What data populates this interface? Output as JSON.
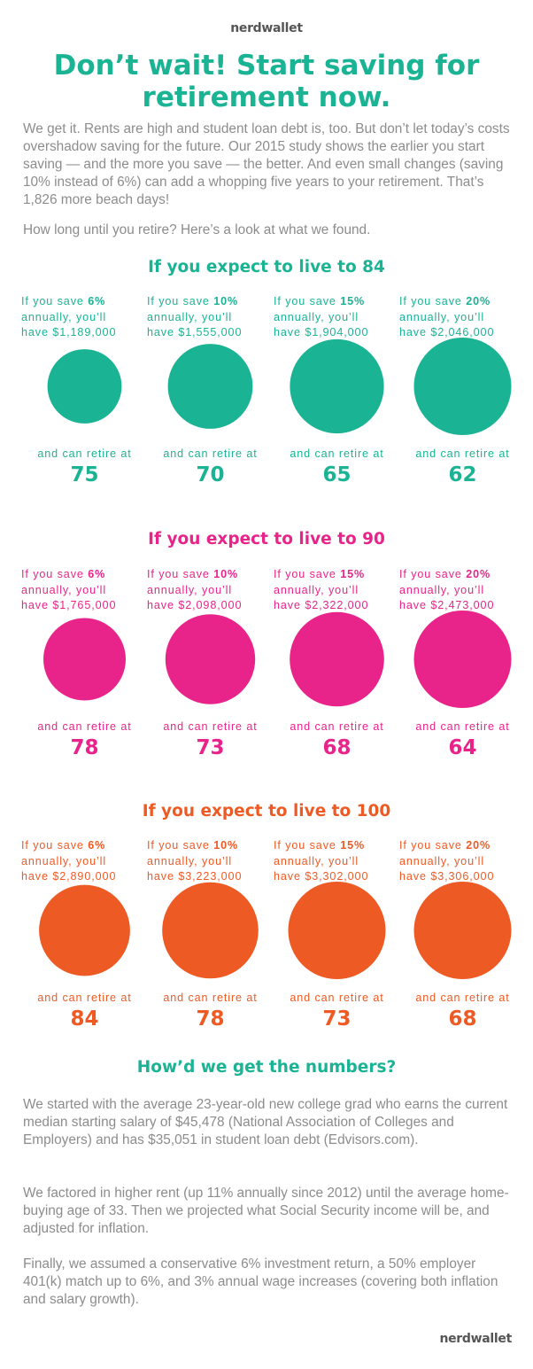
{
  "brand": "nerdwallet",
  "title": "Don’t wait! Start saving for retirement now.",
  "intro": "We get it. Rents are high and student loan debt is, too. But don’t let today’s costs overshadow saving for the future. Our 2015 study shows the earlier you start saving — and the more you save — the better. And even small changes (saving 10% instead of 6%) can add a whopping five years to your retirement. That’s 1,826 more beach days!",
  "question": "How long until you retire? Here’s a look at what we found.",
  "labels": {
    "save_prefix": "If you save ",
    "annually": "annually, you’ll",
    "have_prefix": "have ",
    "retire_label": "and can retire at"
  },
  "colors": {
    "teal": "#1ab394",
    "magenta": "#e8248a",
    "orange": "#ee5a24"
  },
  "chart_data": [
    {
      "type": "bubble",
      "title": "If you expect to live to 84",
      "series": [
        {
          "save_rate": "6%",
          "savings": "$1,189,000",
          "savings_value": 1189000,
          "retire_age": "75"
        },
        {
          "save_rate": "10%",
          "savings": "$1,555,000",
          "savings_value": 1555000,
          "retire_age": "70"
        },
        {
          "save_rate": "15%",
          "savings": "$1,904,000",
          "savings_value": 1904000,
          "retire_age": "65"
        },
        {
          "save_rate": "20%",
          "savings": "$2,046,000",
          "savings_value": 2046000,
          "retire_age": "62"
        }
      ]
    },
    {
      "type": "bubble",
      "title": "If you expect to live to 90",
      "series": [
        {
          "save_rate": "6%",
          "savings": "$1,765,000",
          "savings_value": 1765000,
          "retire_age": "78"
        },
        {
          "save_rate": "10%",
          "savings": "$2,098,000",
          "savings_value": 2098000,
          "retire_age": "73"
        },
        {
          "save_rate": "15%",
          "savings": "$2,322,000",
          "savings_value": 2322000,
          "retire_age": "68"
        },
        {
          "save_rate": "20%",
          "savings": "$2,473,000",
          "savings_value": 2473000,
          "retire_age": "64"
        }
      ]
    },
    {
      "type": "bubble",
      "title": "If you expect to live to 100",
      "series": [
        {
          "save_rate": "6%",
          "savings": "$2,890,000",
          "savings_value": 2890000,
          "retire_age": "84"
        },
        {
          "save_rate": "10%",
          "savings": "$3,223,000",
          "savings_value": 3223000,
          "retire_age": "78"
        },
        {
          "save_rate": "15%",
          "savings": "$3,302,000",
          "savings_value": 3302000,
          "retire_age": "73"
        },
        {
          "save_rate": "20%",
          "savings": "$3,306,000",
          "savings_value": 3306000,
          "retire_age": "68"
        }
      ]
    }
  ],
  "methodology": {
    "title": "How’d we get the numbers?",
    "paragraphs": [
      "We started with the average 23-year-old new college grad who earns the current median starting salary of $45,478 (National Association of Colleges and Employers) and has $35,051 in student loan debt (Edvisors.com).",
      "We factored in higher rent (up 11% annually since 2012) until the average home-buying age of 33. Then we projected what Social Security income will be, and adjusted for inflation.",
      "Finally, we assumed a conservative 6% investment return, a 50% employer 401(k) match up to 6%, and 3% annual wage increases (covering both inflation and salary growth)."
    ]
  }
}
